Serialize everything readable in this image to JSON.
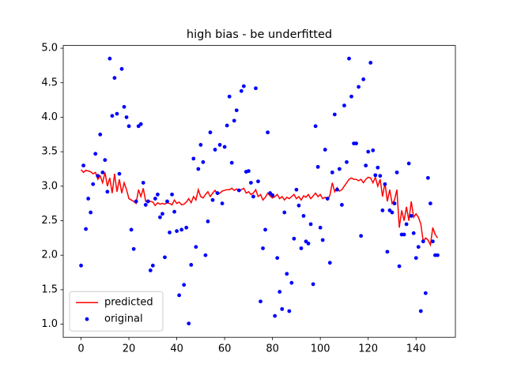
{
  "chart_data": {
    "type": "line",
    "title": "high bias - be underfitted",
    "x": [
      0,
      1,
      2,
      3,
      4,
      5,
      6,
      7,
      8,
      9,
      10,
      11,
      12,
      13,
      14,
      15,
      16,
      17,
      18,
      19,
      20,
      21,
      22,
      23,
      24,
      25,
      26,
      27,
      28,
      29,
      30,
      31,
      32,
      33,
      34,
      35,
      36,
      37,
      38,
      39,
      40,
      41,
      42,
      43,
      44,
      45,
      46,
      47,
      48,
      49,
      50,
      51,
      52,
      53,
      54,
      55,
      56,
      57,
      58,
      59,
      60,
      61,
      62,
      63,
      64,
      65,
      66,
      67,
      68,
      69,
      70,
      71,
      72,
      73,
      74,
      75,
      76,
      77,
      78,
      79,
      80,
      81,
      82,
      83,
      84,
      85,
      86,
      87,
      88,
      89,
      90,
      91,
      92,
      93,
      94,
      95,
      96,
      97,
      98,
      99,
      100,
      101,
      102,
      103,
      104,
      105,
      106,
      107,
      108,
      109,
      110,
      111,
      112,
      113,
      114,
      115,
      116,
      117,
      118,
      119,
      120,
      121,
      122,
      123,
      124,
      125,
      126,
      127,
      128,
      129,
      130,
      131,
      132,
      133,
      134,
      135,
      136,
      137,
      138,
      139,
      140,
      141,
      142,
      143,
      144,
      145,
      146,
      147,
      148,
      149
    ],
    "series": [
      {
        "name": "predicted",
        "type": "line",
        "color": "#ff0000",
        "values": [
          3.24,
          3.2,
          3.23,
          3.22,
          3.21,
          3.18,
          3.2,
          3.1,
          3.15,
          3.05,
          3.2,
          3.0,
          3.12,
          2.9,
          3.18,
          2.92,
          3.1,
          2.9,
          3.05,
          2.95,
          2.82,
          2.8,
          2.78,
          2.75,
          2.95,
          2.85,
          2.97,
          2.78,
          2.8,
          2.78,
          2.77,
          2.72,
          2.76,
          2.74,
          2.75,
          2.74,
          2.76,
          2.75,
          2.73,
          2.8,
          2.75,
          2.77,
          2.73,
          2.74,
          2.77,
          2.82,
          2.76,
          2.85,
          2.8,
          2.95,
          2.85,
          2.83,
          2.88,
          2.92,
          2.85,
          2.9,
          2.94,
          2.88,
          2.9,
          2.93,
          2.94,
          2.95,
          2.95,
          2.97,
          2.94,
          2.96,
          2.93,
          2.95,
          2.97,
          2.9,
          2.92,
          2.88,
          2.9,
          2.95,
          2.85,
          2.88,
          2.8,
          2.84,
          2.9,
          2.86,
          2.83,
          2.85,
          2.88,
          2.82,
          2.85,
          2.8,
          2.84,
          2.82,
          2.85,
          2.88,
          2.82,
          2.85,
          2.8,
          2.86,
          2.84,
          2.88,
          2.82,
          2.86,
          2.9,
          2.85,
          2.88,
          2.82,
          2.84,
          2.8,
          2.87,
          3.05,
          2.92,
          2.98,
          2.93,
          2.95,
          3.0,
          3.05,
          3.1,
          3.12,
          3.1,
          3.1,
          3.08,
          3.1,
          3.05,
          3.1,
          3.13,
          3.12,
          3.05,
          3.13,
          3.0,
          3.1,
          2.85,
          3.05,
          2.78,
          2.95,
          2.75,
          2.8,
          2.95,
          2.4,
          2.65,
          2.5,
          2.7,
          2.5,
          2.78,
          2.55,
          2.6,
          2.55,
          2.45,
          2.2,
          2.25,
          2.22,
          2.15,
          2.4,
          2.3,
          2.25
        ]
      },
      {
        "name": "original",
        "type": "scatter",
        "color": "#0000ff",
        "values": [
          1.85,
          3.3,
          2.38,
          2.82,
          2.62,
          3.03,
          3.47,
          3.15,
          3.75,
          3.2,
          3.38,
          2.92,
          4.85,
          4.02,
          4.57,
          4.05,
          3.18,
          4.7,
          4.15,
          4.0,
          3.87,
          2.37,
          2.09,
          2.78,
          3.87,
          3.9,
          3.05,
          2.73,
          2.78,
          1.78,
          1.85,
          2.82,
          2.88,
          2.55,
          2.6,
          1.97,
          2.78,
          2.33,
          2.88,
          2.63,
          2.35,
          1.42,
          2.37,
          1.57,
          2.4,
          1.01,
          1.86,
          3.4,
          2.12,
          3.25,
          3.6,
          3.35,
          2.0,
          2.49,
          3.78,
          2.8,
          3.53,
          2.9,
          3.6,
          2.75,
          3.57,
          3.88,
          4.3,
          3.34,
          3.95,
          4.1,
          2.94,
          4.38,
          4.45,
          3.21,
          3.22,
          3.05,
          2.85,
          4.42,
          3.07,
          1.33,
          2.1,
          2.37,
          3.78,
          2.9,
          2.87,
          1.12,
          1.96,
          1.47,
          1.22,
          2.62,
          1.73,
          1.19,
          1.6,
          2.24,
          2.95,
          2.72,
          2.1,
          2.57,
          2.2,
          2.17,
          2.45,
          1.58,
          3.87,
          3.28,
          2.4,
          2.22,
          3.53,
          2.82,
          1.89,
          3.2,
          4.04,
          2.95,
          3.25,
          2.73,
          4.17,
          3.35,
          4.85,
          4.3,
          3.62,
          3.62,
          4.44,
          2.28,
          4.55,
          3.3,
          3.5,
          4.79,
          3.52,
          3.16,
          3.27,
          3.15,
          2.65,
          3.03,
          2.05,
          2.65,
          2.62,
          2.75,
          3.2,
          1.84,
          2.3,
          2.3,
          2.45,
          3.33,
          2.57,
          2.32,
          1.96,
          2.12,
          1.19,
          2.2,
          1.45,
          3.12,
          2.75,
          2.2,
          2.0,
          2.0
        ]
      }
    ],
    "xlim": [
      -7.45,
      156.45
    ],
    "xticks": [
      0,
      20,
      40,
      60,
      80,
      100,
      120,
      140
    ],
    "ylim": [
      0.81,
      5.04
    ],
    "yticks": [
      {
        "value": 1.0,
        "label": "1.0"
      },
      {
        "value": 1.5,
        "label": "1.5"
      },
      {
        "value": 2.0,
        "label": "2.0"
      },
      {
        "value": 2.5,
        "label": "2.5"
      },
      {
        "value": 3.0,
        "label": "3.0"
      },
      {
        "value": 3.5,
        "label": "3.5"
      },
      {
        "value": 4.0,
        "label": "4.0"
      },
      {
        "value": 4.5,
        "label": "4.5"
      },
      {
        "value": 5.0,
        "label": "5.0"
      }
    ],
    "legend": "lower left",
    "grid": false
  }
}
